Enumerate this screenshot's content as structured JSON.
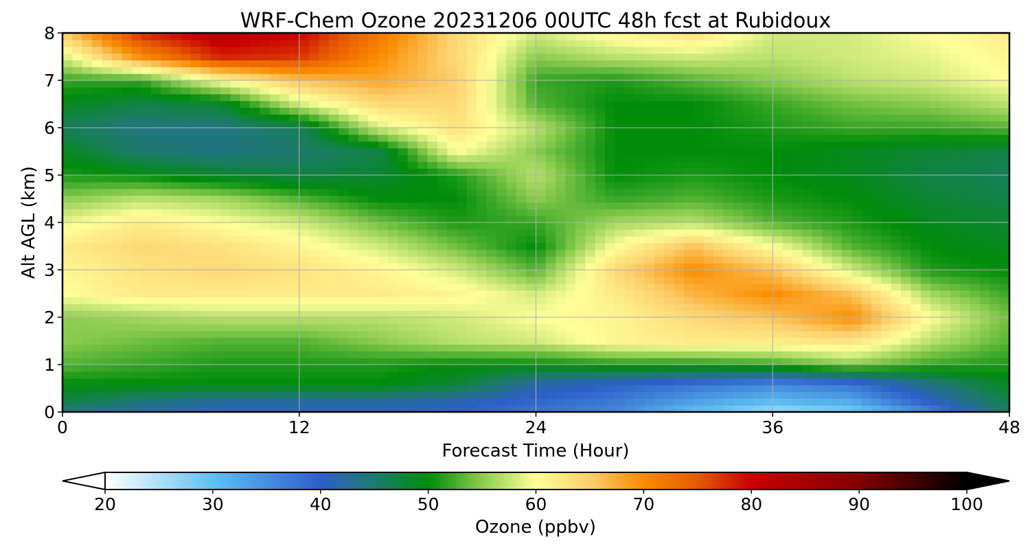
{
  "chart_data": {
    "type": "heatmap",
    "title": "WRF-Chem Ozone  20231206 00UTC 48h fcst at Rubidoux",
    "xlabel": "Forecast Time (Hour)",
    "ylabel": "Alt AGL (km)",
    "xlim": [
      0,
      48
    ],
    "ylim": [
      0,
      8
    ],
    "x_ticks": [
      0,
      12,
      24,
      36,
      48
    ],
    "y_ticks": [
      0,
      1,
      2,
      3,
      4,
      5,
      6,
      7,
      8
    ],
    "grid": true,
    "colorbar": {
      "label": "Ozone  (ppbv)",
      "range": [
        20,
        100
      ],
      "ticks": [
        20,
        30,
        40,
        50,
        60,
        70,
        80,
        90,
        100
      ],
      "extend": "both",
      "stops": [
        {
          "v": 20,
          "c": "#ffffff"
        },
        {
          "v": 30,
          "c": "#5fc0f2"
        },
        {
          "v": 40,
          "c": "#2e5fc9"
        },
        {
          "v": 45,
          "c": "#1e7a6e"
        },
        {
          "v": 50,
          "c": "#008c0a"
        },
        {
          "v": 55,
          "c": "#8ccc50"
        },
        {
          "v": 60,
          "c": "#ffff99"
        },
        {
          "v": 65,
          "c": "#fccf6c"
        },
        {
          "v": 70,
          "c": "#fa8c00"
        },
        {
          "v": 75,
          "c": "#e65a00"
        },
        {
          "v": 80,
          "c": "#c80000"
        },
        {
          "v": 90,
          "c": "#820000"
        },
        {
          "v": 100,
          "c": "#000000"
        }
      ]
    },
    "x": [
      0,
      4,
      8,
      12,
      16,
      20,
      24,
      28,
      32,
      36,
      40,
      44,
      48
    ],
    "y": [
      0,
      0.2,
      0.6,
      1,
      1.5,
      2,
      2.5,
      3,
      3.5,
      4,
      4.5,
      5,
      5.5,
      6,
      6.5,
      7,
      7.5,
      8
    ],
    "z": [
      [
        44,
        42,
        41,
        41,
        41,
        40,
        38,
        36,
        30,
        26,
        28,
        36,
        46
      ],
      [
        47,
        44,
        42,
        42,
        42,
        41,
        39,
        37,
        33,
        30,
        32,
        40,
        47
      ],
      [
        50,
        50,
        50,
        50,
        50,
        48,
        42,
        40,
        38,
        36,
        38,
        44,
        49
      ],
      [
        53,
        52,
        51,
        51,
        51,
        50,
        50,
        51,
        51,
        52,
        55,
        52,
        51
      ],
      [
        55,
        54,
        53,
        53,
        55,
        57,
        58,
        61,
        62,
        62,
        63,
        57,
        53
      ],
      [
        55,
        56,
        57,
        57,
        57,
        58,
        60,
        61,
        64,
        66,
        70,
        60,
        54
      ],
      [
        60,
        62,
        62,
        62,
        62,
        61,
        58,
        62,
        67,
        70,
        66,
        56,
        52
      ],
      [
        61,
        63,
        64,
        63,
        61,
        58,
        53,
        64,
        70,
        66,
        58,
        51,
        50
      ],
      [
        62,
        64,
        63,
        61,
        58,
        54,
        50,
        60,
        66,
        60,
        53,
        50,
        49
      ],
      [
        59,
        62,
        60,
        58,
        54,
        51,
        52,
        56,
        57,
        53,
        51,
        49,
        48
      ],
      [
        55,
        57,
        56,
        53,
        50,
        50,
        55,
        52,
        53,
        51,
        50,
        48,
        47
      ],
      [
        51,
        50,
        48,
        47,
        48,
        51,
        57,
        50,
        51,
        50,
        49,
        47,
        46
      ],
      [
        49,
        45,
        44,
        45,
        47,
        60,
        55,
        50,
        50,
        50,
        49,
        48,
        47
      ],
      [
        46,
        44,
        44,
        46,
        58,
        63,
        57,
        50,
        50,
        51,
        52,
        52,
        53
      ],
      [
        49,
        47,
        48,
        58,
        64,
        64,
        53,
        50,
        50,
        52,
        54,
        55,
        57
      ],
      [
        52,
        52,
        60,
        66,
        68,
        65,
        52,
        51,
        53,
        55,
        57,
        58,
        60
      ],
      [
        58,
        70,
        78,
        77,
        70,
        64,
        55,
        57,
        58,
        57,
        58,
        59,
        61
      ],
      [
        65,
        78,
        82,
        80,
        72,
        64,
        58,
        61,
        63,
        58,
        58,
        60,
        62
      ]
    ]
  }
}
